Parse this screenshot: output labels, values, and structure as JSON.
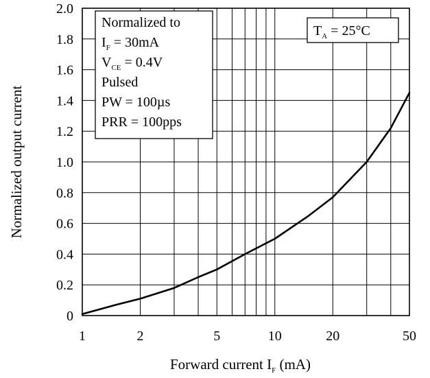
{
  "chart_data": {
    "type": "line",
    "xscale": "log",
    "xlim": [
      1,
      50
    ],
    "ylim": [
      0,
      2.0
    ],
    "grid": true,
    "xlabel": {
      "main": "Forward current I",
      "sub": "F",
      "suffix": " (mA)"
    },
    "ylabel": "Normalized output current",
    "xticks": [
      {
        "value": 1,
        "label": "1"
      },
      {
        "value": 2,
        "label": "2"
      },
      {
        "value": 5,
        "label": "5"
      },
      {
        "value": 10,
        "label": "10"
      },
      {
        "value": 20,
        "label": "20"
      },
      {
        "value": 50,
        "label": "50"
      }
    ],
    "xgrid": [
      1,
      2,
      3,
      4,
      5,
      6,
      7,
      8,
      9,
      10,
      20,
      30,
      40,
      50
    ],
    "yticks": [
      {
        "value": 0,
        "label": "0"
      },
      {
        "value": 0.2,
        "label": "0.2"
      },
      {
        "value": 0.4,
        "label": "0.4"
      },
      {
        "value": 0.6,
        "label": "0.6"
      },
      {
        "value": 0.8,
        "label": "0.8"
      },
      {
        "value": 1.0,
        "label": "1.0"
      },
      {
        "value": 1.2,
        "label": "1.2"
      },
      {
        "value": 1.4,
        "label": "1.4"
      },
      {
        "value": 1.6,
        "label": "1.6"
      },
      {
        "value": 1.8,
        "label": "1.8"
      },
      {
        "value": 2.0,
        "label": "2.0"
      }
    ],
    "series": [
      {
        "x": [
          1,
          1.5,
          2,
          3,
          4,
          5,
          7,
          10,
          15,
          20,
          30,
          40,
          50
        ],
        "y": [
          0.01,
          0.07,
          0.11,
          0.18,
          0.25,
          0.3,
          0.4,
          0.5,
          0.65,
          0.77,
          1.0,
          1.22,
          1.45
        ]
      }
    ],
    "conditions_box": {
      "lines": [
        {
          "text": "Normalized to"
        },
        {
          "text": "I",
          "sub": "F",
          "rest": " = 30mA"
        },
        {
          "text": "V",
          "sub": "CE",
          "rest": " = 0.4V"
        },
        {
          "text": "Pulsed"
        },
        {
          "text": "PW = 100µs"
        },
        {
          "text": "PRR = 100pps"
        }
      ]
    },
    "temperature_box": {
      "text": "T",
      "sub": "A",
      "rest": " = 25°C"
    }
  }
}
